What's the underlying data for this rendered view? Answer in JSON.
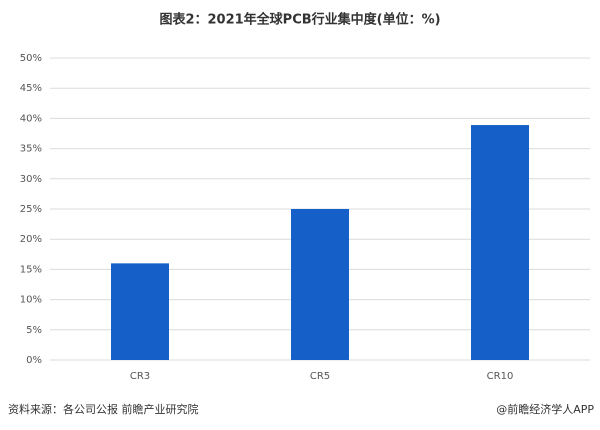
{
  "chart_data": {
    "type": "bar",
    "title": "图表2：2021年全球PCB行业集中度(单位：%)",
    "categories": [
      "CR3",
      "CR5",
      "CR10"
    ],
    "values": [
      16,
      25,
      38.9
    ],
    "color": "#1560c8",
    "ylim": [
      0,
      50
    ],
    "yticks": [
      {
        "value": 0,
        "label": "0%"
      },
      {
        "value": 5,
        "label": "5%"
      },
      {
        "value": 10,
        "label": "10%"
      },
      {
        "value": 15,
        "label": "15%"
      },
      {
        "value": 20,
        "label": "20%"
      },
      {
        "value": 25,
        "label": "25%"
      },
      {
        "value": 30,
        "label": "30%"
      },
      {
        "value": 35,
        "label": "35%"
      },
      {
        "value": 40,
        "label": "40%"
      },
      {
        "value": 45,
        "label": "45%"
      },
      {
        "value": 50,
        "label": "50%"
      }
    ],
    "grid": true,
    "source": "资料来源：各公司公报 前瞻产业研究院",
    "credit": "@前瞻经济学人APP"
  }
}
